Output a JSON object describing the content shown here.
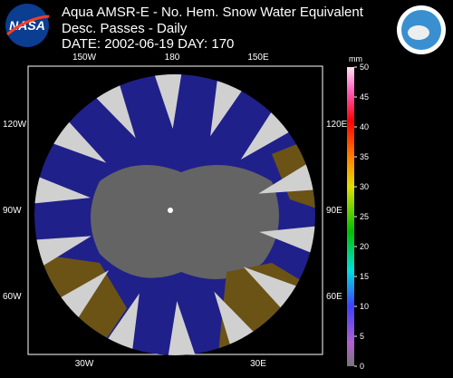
{
  "header": {
    "lines": [
      "Aqua AMSR-E - No. Hem. Snow Water Equivalent",
      "Desc. Passes - Daily",
      "DATE: 2002-06-19  DAY: 170"
    ]
  },
  "map": {
    "top_labels": [
      "150W",
      "180",
      "150E"
    ],
    "left_labels": [
      "120W",
      "90W",
      "60W"
    ],
    "right_labels": [
      "120E",
      "90E",
      "60E"
    ],
    "bottom_labels": [
      "30W",
      "30E"
    ]
  },
  "colorbar": {
    "unit": "mm",
    "lim": [
      0,
      50
    ],
    "ticks": [
      0,
      5,
      10,
      15,
      20,
      25,
      30,
      35,
      40,
      45,
      50
    ]
  }
}
